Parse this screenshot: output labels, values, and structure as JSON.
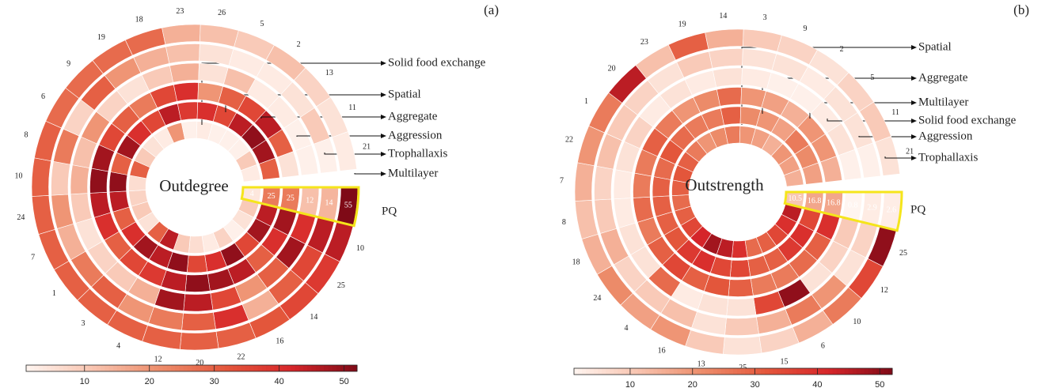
{
  "chart_data": [
    {
      "type": "radial-heatmap",
      "panel_label": "(a)",
      "center_label": "Outdegree",
      "highlight_color": "#f5e51b",
      "categories": [
        "PQ",
        "10",
        "25",
        "14",
        "16",
        "22",
        "20",
        "12",
        "4",
        "3",
        "1",
        "7",
        "24",
        "10",
        "8",
        "6",
        "9",
        "19",
        "18",
        "23",
        "26",
        "5",
        "2",
        "13",
        "11",
        "21"
      ],
      "series": [
        {
          "name": "Solid food exchange",
          "values": [
            4,
            10,
            5,
            2,
            8,
            3,
            6,
            10,
            45,
            30,
            5,
            10,
            8,
            6,
            30,
            10,
            5,
            3,
            20,
            2,
            3,
            2,
            2,
            2,
            10,
            3
          ]
        },
        {
          "name": "Spatial",
          "values": [
            25,
            45,
            48,
            35,
            50,
            40,
            35,
            50,
            45,
            48,
            40,
            30,
            45,
            50,
            30,
            48,
            40,
            35,
            45,
            38,
            40,
            35,
            45,
            50,
            48,
            30
          ]
        },
        {
          "name": "Aggregate",
          "values": [
            25,
            48,
            40,
            30,
            45,
            48,
            50,
            45,
            38,
            35,
            30,
            40,
            45,
            50,
            48,
            35,
            30,
            25,
            35,
            40,
            20,
            30,
            35,
            45,
            30,
            5
          ]
        },
        {
          "name": "Aggression",
          "values": [
            12,
            40,
            48,
            30,
            20,
            35,
            45,
            48,
            15,
            10,
            8,
            5,
            10,
            15,
            12,
            20,
            8,
            5,
            10,
            15,
            5,
            12,
            3,
            3,
            2,
            2
          ]
        },
        {
          "name": "Trophallaxis",
          "values": [
            14,
            45,
            35,
            30,
            15,
            40,
            30,
            25,
            20,
            30,
            25,
            15,
            20,
            10,
            25,
            8,
            30,
            20,
            15,
            12,
            5,
            3,
            3,
            5,
            10,
            2
          ]
        },
        {
          "name": "Multilayer",
          "values": [
            55,
            45,
            38,
            35,
            32,
            30,
            30,
            30,
            30,
            30,
            30,
            30,
            30,
            30,
            30,
            28,
            28,
            28,
            28,
            15,
            12,
            10,
            12,
            8,
            5,
            3
          ]
        }
      ],
      "clim": [
        1,
        52
      ],
      "cticks": [
        10,
        20,
        30,
        40,
        50
      ],
      "colormap": [
        "#fff5f0",
        "#f8c4b0",
        "#ed8e6c",
        "#e4583c",
        "#d7262a",
        "#7f0a17"
      ]
    },
    {
      "type": "radial-heatmap",
      "panel_label": "(b)",
      "center_label": "Outstrength",
      "highlight_color": "#f5e51b",
      "categories": [
        "PQ",
        "25",
        "12",
        "10",
        "6",
        "15",
        "25",
        "13",
        "16",
        "4",
        "24",
        "18",
        "8",
        "7",
        "22",
        "1",
        "20",
        "23",
        "19",
        "14",
        "3",
        "9",
        "2",
        "5",
        "11",
        "21"
      ],
      "series": [
        {
          "name": "Spatial",
          "values": [
            10.5,
            45,
            40,
            35,
            30,
            28,
            40,
            45,
            48,
            42,
            35,
            30,
            28,
            30,
            32,
            30,
            25,
            20,
            22,
            25,
            20,
            18,
            15,
            20,
            18,
            15
          ]
        },
        {
          "name": "Aggregate",
          "values": [
            16.8,
            35,
            40,
            38,
            30,
            30,
            35,
            35,
            40,
            38,
            32,
            30,
            30,
            30,
            28,
            32,
            28,
            25,
            25,
            30,
            22,
            20,
            18,
            25,
            22,
            18
          ]
        },
        {
          "name": "Multilayer",
          "values": [
            16.8,
            40,
            30,
            28,
            25,
            25,
            30,
            32,
            30,
            35,
            30,
            25,
            28,
            25,
            25,
            30,
            25,
            20,
            22,
            28,
            20,
            18,
            15,
            20,
            20,
            15
          ]
        },
        {
          "name": "Solid food exchange",
          "values": [
            0.8,
            10,
            8,
            5,
            50,
            35,
            5,
            5,
            3,
            28,
            5,
            5,
            3,
            3,
            5,
            8,
            3,
            5,
            3,
            5,
            3,
            2,
            2,
            3,
            5,
            2
          ]
        },
        {
          "name": "Aggression",
          "values": [
            2.9,
            8,
            5,
            20,
            25,
            15,
            10,
            5,
            12,
            10,
            8,
            15,
            10,
            8,
            12,
            10,
            8,
            5,
            10,
            8,
            5,
            5,
            3,
            5,
            5,
            2
          ]
        },
        {
          "name": "Trophallaxis",
          "values": [
            2.6,
            50,
            35,
            25,
            15,
            8,
            5,
            10,
            20,
            18,
            22,
            15,
            12,
            15,
            20,
            25,
            45,
            12,
            30,
            15,
            10,
            8,
            5,
            8,
            10,
            5
          ]
        }
      ],
      "clim": [
        1,
        52
      ],
      "cticks": [
        10,
        20,
        30,
        40,
        50
      ],
      "colormap": [
        "#fff5f0",
        "#f8c4b0",
        "#ed8e6c",
        "#e4583c",
        "#d7262a",
        "#7f0a17"
      ]
    }
  ]
}
